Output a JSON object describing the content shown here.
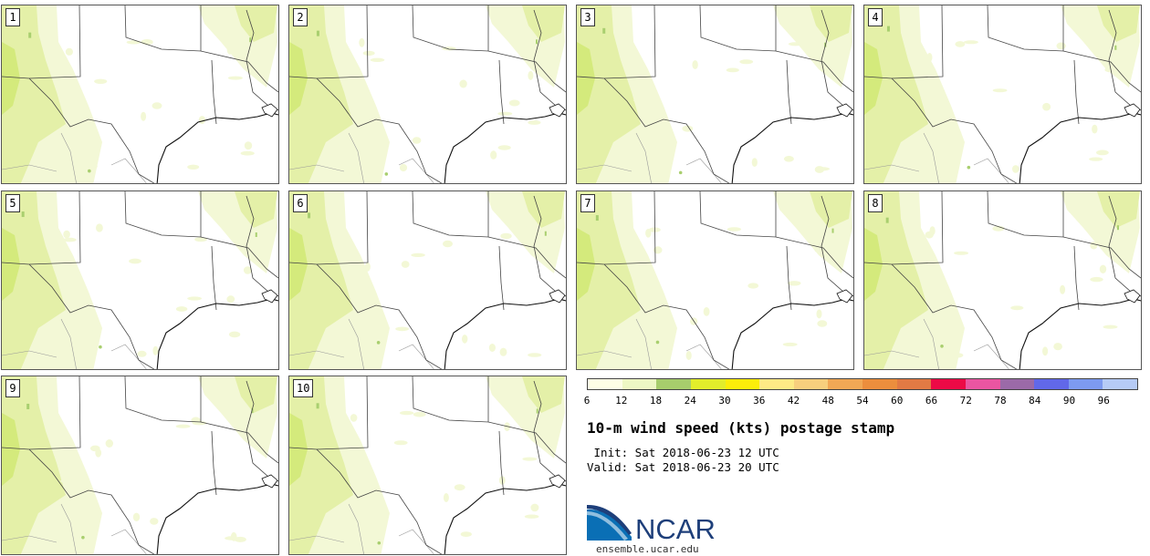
{
  "title": "10-m wind speed (kts) postage stamp",
  "init_line": " Init: Sat 2018-06-23 12 UTC",
  "valid_line": "Valid: Sat 2018-06-23 20 UTC",
  "org_url": "ensemble.ucar.edu",
  "logo_text": "NCAR",
  "members": [
    "1",
    "2",
    "3",
    "4",
    "5",
    "6",
    "7",
    "8",
    "9",
    "10"
  ],
  "colorbar": {
    "labels": [
      "6",
      "12",
      "18",
      "24",
      "30",
      "36",
      "42",
      "48",
      "54",
      "60",
      "66",
      "72",
      "78",
      "84",
      "90",
      "96"
    ],
    "colors": [
      "#fdfde6",
      "#eef7c4",
      "#a7cd6c",
      "#e2ee2b",
      "#fcee0a",
      "#fdea85",
      "#f7cf7d",
      "#f1a855",
      "#ec8e3d",
      "#e27a44",
      "#ec0a46",
      "#ea55a1",
      "#9b6aa8",
      "#6168e9",
      "#7d9af0",
      "#b6cbf6"
    ]
  },
  "map_colors": {
    "light_wind": "#f3f8d6",
    "moderate_wind": "#e4f0a8",
    "strong_wind": "#a9cf6f",
    "boundary": "#444444",
    "county": "#999999"
  },
  "icons": {
    "logo": "ncar-logo-icon"
  }
}
